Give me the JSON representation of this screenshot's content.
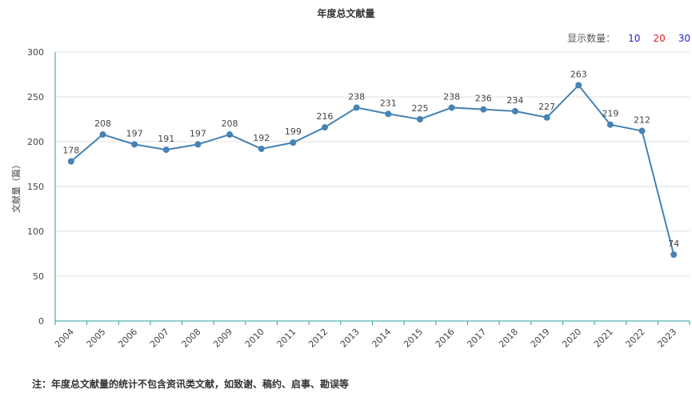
{
  "chart_data": {
    "type": "line",
    "title": "年度总文献量",
    "ylabel": "文献量（篇）",
    "xlabel": "",
    "x": [
      "2004",
      "2005",
      "2006",
      "2007",
      "2008",
      "2009",
      "2010",
      "2011",
      "2012",
      "2013",
      "2014",
      "2015",
      "2016",
      "2017",
      "2018",
      "2019",
      "2020",
      "2021",
      "2022",
      "2023"
    ],
    "series": [
      {
        "values": [
          178,
          208,
          197,
          191,
          197,
          208,
          192,
          199,
          216,
          238,
          231,
          225,
          238,
          236,
          234,
          227,
          263,
          219,
          212,
          74
        ]
      }
    ],
    "ylim": [
      0,
      300
    ],
    "yticks": [
      0,
      50,
      100,
      150,
      200,
      250,
      300
    ],
    "grid": true,
    "colors": {
      "line": "#4682b4",
      "axis": "#2aa198",
      "grid": "#e0e0e0"
    }
  },
  "controls": {
    "count_label": "显示数量：",
    "options": [
      "10",
      "20",
      "30"
    ]
  },
  "note": "注：年度总文献量的统计不包含资讯类文献，如致谢、稿约、启事、勘误等"
}
